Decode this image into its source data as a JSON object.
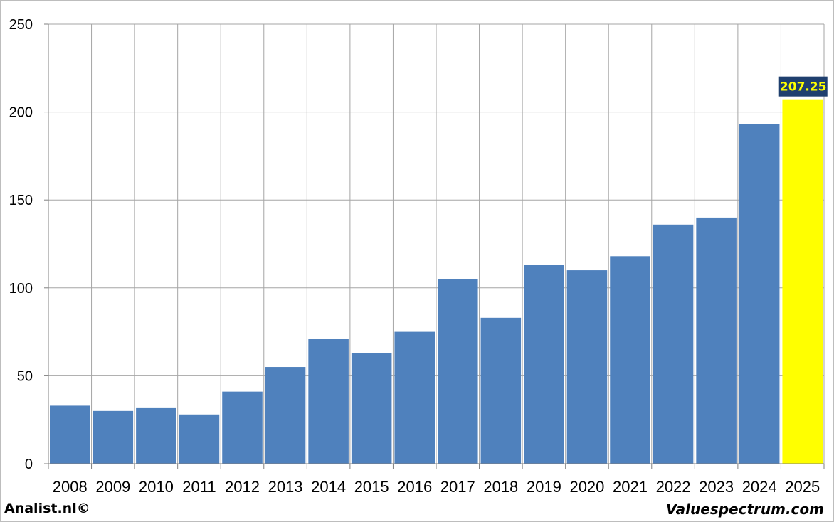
{
  "chart_data": {
    "type": "bar",
    "categories": [
      "2008",
      "2009",
      "2010",
      "2011",
      "2012",
      "2013",
      "2014",
      "2015",
      "2016",
      "2017",
      "2018",
      "2019",
      "2020",
      "2021",
      "2022",
      "2023",
      "2024",
      "2025"
    ],
    "values": [
      33,
      30,
      32,
      28,
      41,
      55,
      71,
      63,
      75,
      105,
      83,
      113,
      110,
      118,
      136,
      140,
      193,
      207.25
    ],
    "ylim": [
      0,
      250
    ],
    "yticks": [
      0,
      50,
      100,
      150,
      200,
      250
    ],
    "grid": true,
    "highlight": {
      "category": "2025",
      "label": "207.25"
    },
    "colors": {
      "bar": "#4f81bd",
      "highlight_bar": "#ffff00",
      "label_bg": "#1f3f6e",
      "label_text": "#ffff00",
      "grid": "#a6a6a6"
    }
  },
  "footer": {
    "left": "Analist.nl©",
    "right": "Valuespectrum.com"
  }
}
